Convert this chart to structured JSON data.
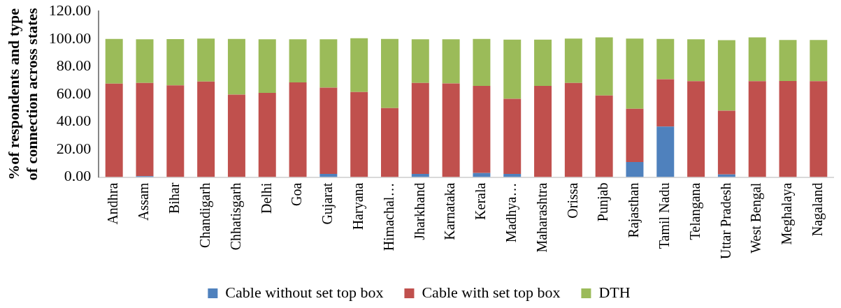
{
  "chart_data": {
    "type": "bar",
    "stacked": true,
    "ylabel": "%of respondents and type\nof connection across states",
    "categories": [
      "Andhra",
      "Assam",
      "Bihar",
      "Chandigarh",
      "Chhatisgarh",
      "Delhi",
      "Goa",
      "Gujarat",
      "Haryana",
      "Himachal…",
      "Jharkhand",
      "Karnataka",
      "Kerala",
      "Madhya…",
      "Maharashtra",
      "Orissa",
      "Punjab",
      "Rajasthan",
      "Tamil Nadu",
      "Telangana",
      "Uttar Pradesh",
      "West Bengal",
      "Meghalaya",
      "Nagaland"
    ],
    "series": [
      {
        "name": "Cable without set top box",
        "color": "#4f81bd",
        "values": [
          0,
          0.7,
          null,
          0,
          null,
          0,
          0,
          2.3,
          0,
          0,
          2.3,
          0,
          3.0,
          2.3,
          0,
          0,
          0,
          10.9,
          36.6,
          0,
          1.9,
          0,
          null,
          null
        ]
      },
      {
        "name": "Cable with set top box",
        "color": "#c0504d",
        "values": [
          67.6,
          67.4,
          66.4,
          69.2,
          59.7,
          60.9,
          68.5,
          62.5,
          61.6,
          50.0,
          65.8,
          67.8,
          63.0,
          54.4,
          66.0,
          68.1,
          59.0,
          38.6,
          34.2,
          69.4,
          46.2,
          69.4,
          69.6,
          69.4
        ]
      },
      {
        "name": "DTH",
        "color": "#9bbb59",
        "values": [
          32.4,
          31.7,
          33.5,
          31.0,
          40.3,
          38.9,
          31.3,
          35.0,
          38.9,
          50.0,
          31.7,
          32.0,
          34.0,
          42.8,
          33.5,
          32.1,
          42.2,
          50.7,
          29.2,
          30.4,
          51.0,
          31.8,
          29.7,
          29.9
        ]
      }
    ],
    "ylim": [
      0,
      120
    ],
    "yticks": [
      {
        "value": 0,
        "label": "0.00"
      },
      {
        "value": 20,
        "label": "20.00"
      },
      {
        "value": 40,
        "label": "40.00"
      },
      {
        "value": 60,
        "label": "60.00"
      },
      {
        "value": 80,
        "label": "80.00"
      },
      {
        "value": 100,
        "label": "100.00"
      },
      {
        "value": 120,
        "label": "120.00"
      }
    ],
    "grid": false,
    "legend": "bottom"
  }
}
